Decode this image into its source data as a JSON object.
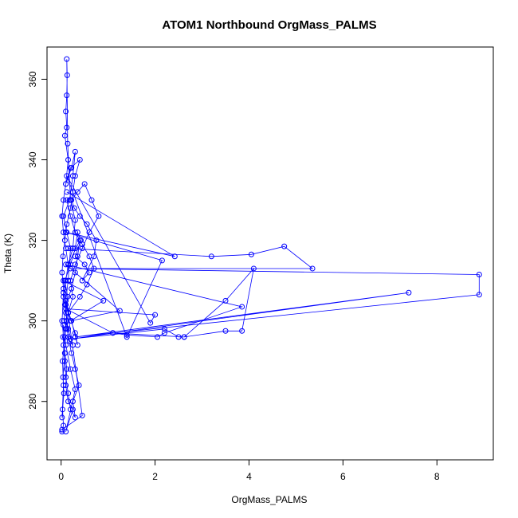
{
  "chart_data": {
    "type": "line",
    "title": "ATOM1 Northbound OrgMass_PALMS",
    "xlabel": "OrgMass_PALMS",
    "ylabel": "Theta (K)",
    "xlim": [
      -0.3,
      9.2
    ],
    "ylim": [
      265.5,
      368
    ],
    "xticks": [
      0,
      2,
      4,
      6,
      8
    ],
    "yticks": [
      280,
      300,
      320,
      340,
      360
    ],
    "grid": false,
    "legend": "none",
    "series": [
      {
        "color": "#0000ff",
        "marker": "open-circle",
        "x": [
          0.02,
          0.05,
          0.03,
          0.08,
          0.12,
          0.1,
          0.15,
          0.2,
          0.12,
          0.05,
          0.18,
          0.25,
          0.3,
          0.22,
          0.1,
          0.15,
          0.08,
          0.12,
          0.1,
          0.12,
          0.13,
          0.12,
          0.14,
          0.2,
          0.3,
          0.25,
          0.15,
          0.4,
          0.35,
          0.3,
          0.22,
          0.1,
          0.06,
          0.12,
          0.18,
          0.25,
          0.15,
          0.1,
          0.14,
          0.08,
          0.2,
          0.3,
          0.35,
          0.42,
          0.3,
          0.5,
          0.6,
          0.45,
          0.7,
          0.75,
          0.55,
          0.4,
          0.28,
          0.22,
          0.35,
          0.5,
          0.65,
          0.8,
          0.6,
          0.45,
          0.3,
          0.2,
          0.25,
          0.15,
          0.1,
          0.05,
          0.08,
          0.1,
          0.15,
          0.2,
          0.3,
          0.25,
          0.38,
          0.3,
          0.22,
          0.15,
          0.12,
          0.08,
          0.05,
          0.02,
          0.04,
          0.08,
          0.12,
          0.2,
          0.25,
          0.3,
          0.4,
          0.2,
          0.1,
          0.05,
          0.02,
          0.05,
          0.1,
          0.15,
          0.1,
          0.05
        ],
        "y": [
          276,
          284,
          290,
          296,
          300,
          305,
          310,
          318,
          322,
          326,
          330,
          336,
          342,
          338,
          334,
          340,
          346,
          348,
          352,
          356,
          361,
          365,
          344,
          330,
          325,
          318,
          314,
          320,
          316,
          312,
          308,
          304,
          300,
          298,
          295,
          294,
          298,
          302,
          306,
          310,
          314,
          318,
          322,
          320,
          316,
          314,
          312,
          310,
          316,
          320,
          324,
          326,
          328,
          330,
          332,
          334,
          330,
          326,
          322,
          318,
          314,
          310,
          306,
          302,
          298,
          294,
          290,
          286,
          282,
          278,
          276,
          280,
          284,
          288,
          292,
          296,
          300,
          304,
          308,
          312,
          316,
          320,
          324,
          328,
          332,
          336,
          340,
          338,
          334,
          330,
          326,
          322,
          318,
          314,
          310,
          306
        ]
      },
      {
        "color": "#0000ff",
        "marker": "open-circle",
        "x": [
          0.15,
          3.2,
          4.05,
          4.75,
          5.35,
          0.2,
          8.9,
          8.9,
          0.3,
          7.4,
          0.2,
          2.2,
          2.5,
          2.62,
          3.5,
          4.1,
          3.85,
          3.5,
          2.62,
          1.1,
          0.3
        ],
        "y": [
          318,
          316,
          316.5,
          318.5,
          313,
          313,
          311.5,
          306.5,
          296,
          307,
          295.5,
          298,
          296,
          296,
          305,
          313,
          297.5,
          297.5,
          296,
          297,
          296
        ]
      },
      {
        "color": "#0000ff",
        "marker": "open-circle",
        "x": [
          0.12,
          2.42,
          0.1,
          2.15,
          1.4,
          0.12,
          1.9,
          2.0,
          0.1,
          1.1,
          1.4,
          2.05,
          2.2,
          3.85,
          0.1,
          1.25,
          0.2,
          0.9,
          0.05,
          0.45,
          0.02
        ],
        "y": [
          332,
          316,
          322,
          315,
          296,
          336,
          299.5,
          301.5,
          303,
          297,
          296.5,
          296,
          297,
          303.5,
          314,
          302.5,
          300,
          305,
          310,
          276.5,
          273
        ]
      },
      {
        "color": "#0000ff",
        "marker": "open-circle",
        "x": [
          0.02,
          0.05,
          0.03,
          0.06,
          0.04,
          0.08,
          0.12,
          0.1,
          0.15,
          0.25,
          0.1,
          0.3,
          0.2,
          0.1,
          0.05,
          0.04,
          0.08,
          0.02,
          0.05,
          0.1,
          0.22,
          0.35,
          0.3,
          0.15,
          0.4,
          0.55,
          0.7,
          0.6,
          0.45,
          0.3,
          0.2,
          0.12
        ],
        "y": [
          272.5,
          274,
          278,
          282,
          286,
          292,
          288,
          284,
          280,
          278,
          272.5,
          283,
          288,
          294,
          299,
          296,
          292,
          300,
          307,
          304,
          300,
          294,
          297,
          302,
          306,
          309,
          313,
          316,
          319,
          322,
          326,
          330
        ]
      }
    ]
  }
}
